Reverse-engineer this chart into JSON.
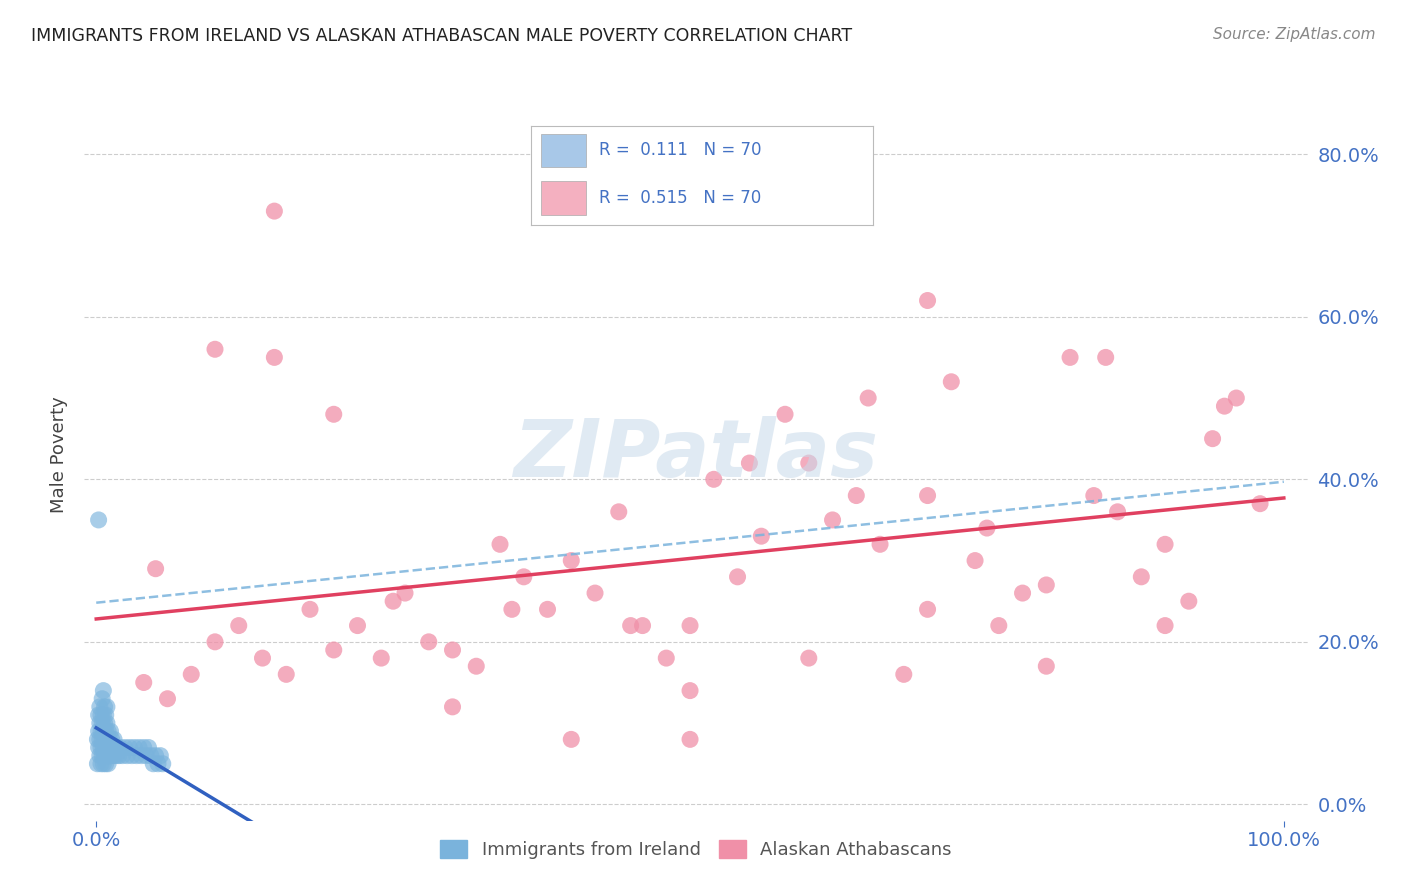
{
  "title": "IMMIGRANTS FROM IRELAND VS ALASKAN ATHABASCAN MALE POVERTY CORRELATION CHART",
  "source": "Source: ZipAtlas.com",
  "ylabel": "Male Poverty",
  "ytick_labels": [
    "0.0%",
    "20.0%",
    "40.0%",
    "60.0%",
    "80.0%"
  ],
  "ytick_values": [
    0.0,
    0.2,
    0.4,
    0.6,
    0.8
  ],
  "ireland_color": "#7ab3dc",
  "athabascan_color": "#f090a8",
  "ireland_line_color": "#3060c0",
  "athabascan_line_color": "#e04060",
  "dashed_line_color": "#7ab3dc",
  "background_color": "#ffffff",
  "grid_color": "#c8c8c8",
  "title_color": "#222222",
  "axis_label_color": "#4472c4",
  "legend_text_color": "#4472c4",
  "source_color": "#888888",
  "watermark_color": "#c8daea",
  "legend_ireland_color": "#a8c8e8",
  "legend_athabascan_color": "#f4b0c0",
  "ireland_x": [
    0.001,
    0.001,
    0.002,
    0.002,
    0.002,
    0.003,
    0.003,
    0.003,
    0.003,
    0.004,
    0.004,
    0.004,
    0.004,
    0.005,
    0.005,
    0.005,
    0.005,
    0.006,
    0.006,
    0.006,
    0.006,
    0.006,
    0.007,
    0.007,
    0.007,
    0.007,
    0.008,
    0.008,
    0.008,
    0.008,
    0.009,
    0.009,
    0.009,
    0.009,
    0.01,
    0.01,
    0.01,
    0.011,
    0.011,
    0.012,
    0.012,
    0.013,
    0.013,
    0.014,
    0.015,
    0.015,
    0.016,
    0.017,
    0.018,
    0.019,
    0.02,
    0.022,
    0.024,
    0.026,
    0.028,
    0.03,
    0.032,
    0.034,
    0.036,
    0.038,
    0.04,
    0.042,
    0.044,
    0.046,
    0.048,
    0.05,
    0.052,
    0.054,
    0.056,
    0.002
  ],
  "ireland_y": [
    0.05,
    0.08,
    0.07,
    0.09,
    0.11,
    0.06,
    0.08,
    0.1,
    0.12,
    0.05,
    0.07,
    0.09,
    0.11,
    0.06,
    0.08,
    0.1,
    0.13,
    0.05,
    0.07,
    0.09,
    0.11,
    0.14,
    0.06,
    0.08,
    0.1,
    0.12,
    0.05,
    0.07,
    0.09,
    0.11,
    0.06,
    0.08,
    0.1,
    0.12,
    0.05,
    0.07,
    0.09,
    0.06,
    0.08,
    0.07,
    0.09,
    0.06,
    0.08,
    0.07,
    0.06,
    0.08,
    0.07,
    0.06,
    0.07,
    0.06,
    0.07,
    0.06,
    0.07,
    0.06,
    0.07,
    0.06,
    0.07,
    0.06,
    0.07,
    0.06,
    0.07,
    0.06,
    0.07,
    0.06,
    0.05,
    0.06,
    0.05,
    0.06,
    0.05,
    0.35
  ],
  "athabascan_x": [
    0.04,
    0.06,
    0.08,
    0.1,
    0.12,
    0.14,
    0.16,
    0.18,
    0.2,
    0.22,
    0.24,
    0.26,
    0.28,
    0.3,
    0.32,
    0.34,
    0.36,
    0.38,
    0.4,
    0.42,
    0.44,
    0.46,
    0.48,
    0.5,
    0.52,
    0.54,
    0.56,
    0.58,
    0.6,
    0.62,
    0.64,
    0.66,
    0.68,
    0.7,
    0.72,
    0.74,
    0.76,
    0.78,
    0.8,
    0.82,
    0.84,
    0.86,
    0.88,
    0.9,
    0.92,
    0.94,
    0.96,
    0.98,
    0.1,
    0.2,
    0.3,
    0.4,
    0.5,
    0.6,
    0.7,
    0.8,
    0.9,
    0.15,
    0.25,
    0.35,
    0.45,
    0.55,
    0.65,
    0.75,
    0.85,
    0.95,
    0.05,
    0.5,
    0.7,
    0.15
  ],
  "athabascan_y": [
    0.15,
    0.13,
    0.16,
    0.2,
    0.22,
    0.18,
    0.16,
    0.24,
    0.19,
    0.22,
    0.18,
    0.26,
    0.2,
    0.19,
    0.17,
    0.32,
    0.28,
    0.24,
    0.3,
    0.26,
    0.36,
    0.22,
    0.18,
    0.22,
    0.4,
    0.28,
    0.33,
    0.48,
    0.42,
    0.35,
    0.38,
    0.32,
    0.16,
    0.24,
    0.52,
    0.3,
    0.22,
    0.26,
    0.17,
    0.55,
    0.38,
    0.36,
    0.28,
    0.32,
    0.25,
    0.45,
    0.5,
    0.37,
    0.56,
    0.48,
    0.12,
    0.08,
    0.14,
    0.18,
    0.38,
    0.27,
    0.22,
    0.55,
    0.25,
    0.24,
    0.22,
    0.42,
    0.5,
    0.34,
    0.55,
    0.49,
    0.29,
    0.08,
    0.62,
    0.73
  ]
}
